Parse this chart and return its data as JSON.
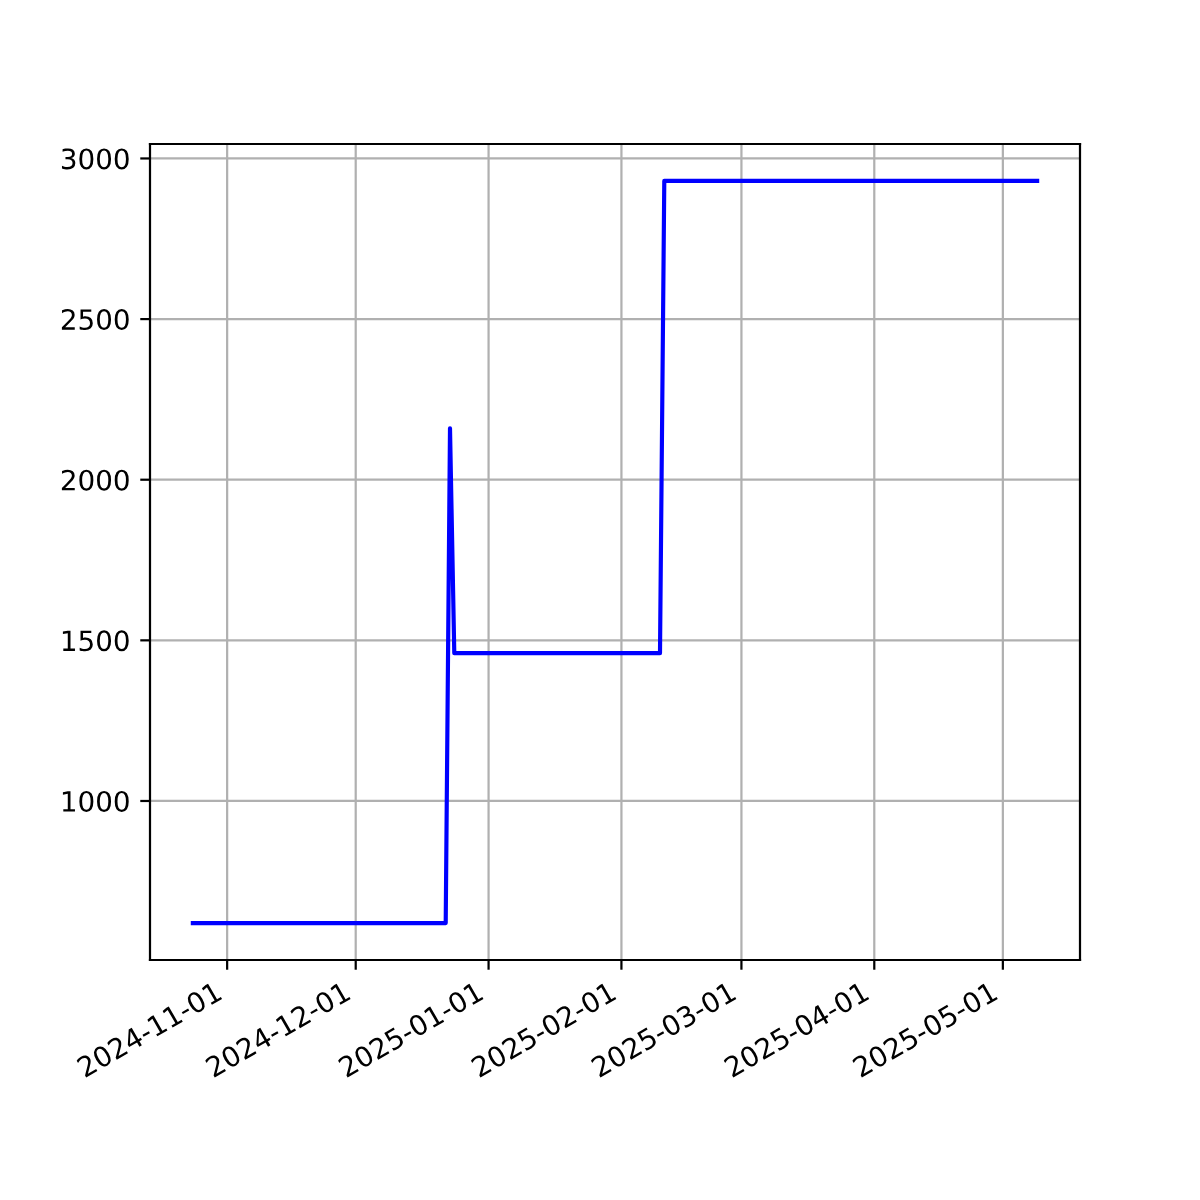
{
  "chart_data": {
    "type": "line",
    "x": [
      "2024-10-24",
      "2024-12-22",
      "2024-12-23",
      "2024-12-24",
      "2025-02-10",
      "2025-02-11",
      "2025-05-09"
    ],
    "series": [
      {
        "color": "#0000ff",
        "values": [
          620,
          620,
          2160,
          1460,
          1460,
          2930,
          2930
        ]
      }
    ],
    "xlim": [
      "2024-10-14",
      "2025-05-19"
    ],
    "xticks": [
      "2024-11-01",
      "2024-12-01",
      "2025-01-01",
      "2025-02-01",
      "2025-03-01",
      "2025-04-01",
      "2025-05-01"
    ],
    "ylim": [
      505,
      3045
    ],
    "yticks": [
      1000,
      1500,
      2000,
      2500,
      3000
    ],
    "grid": true
  }
}
